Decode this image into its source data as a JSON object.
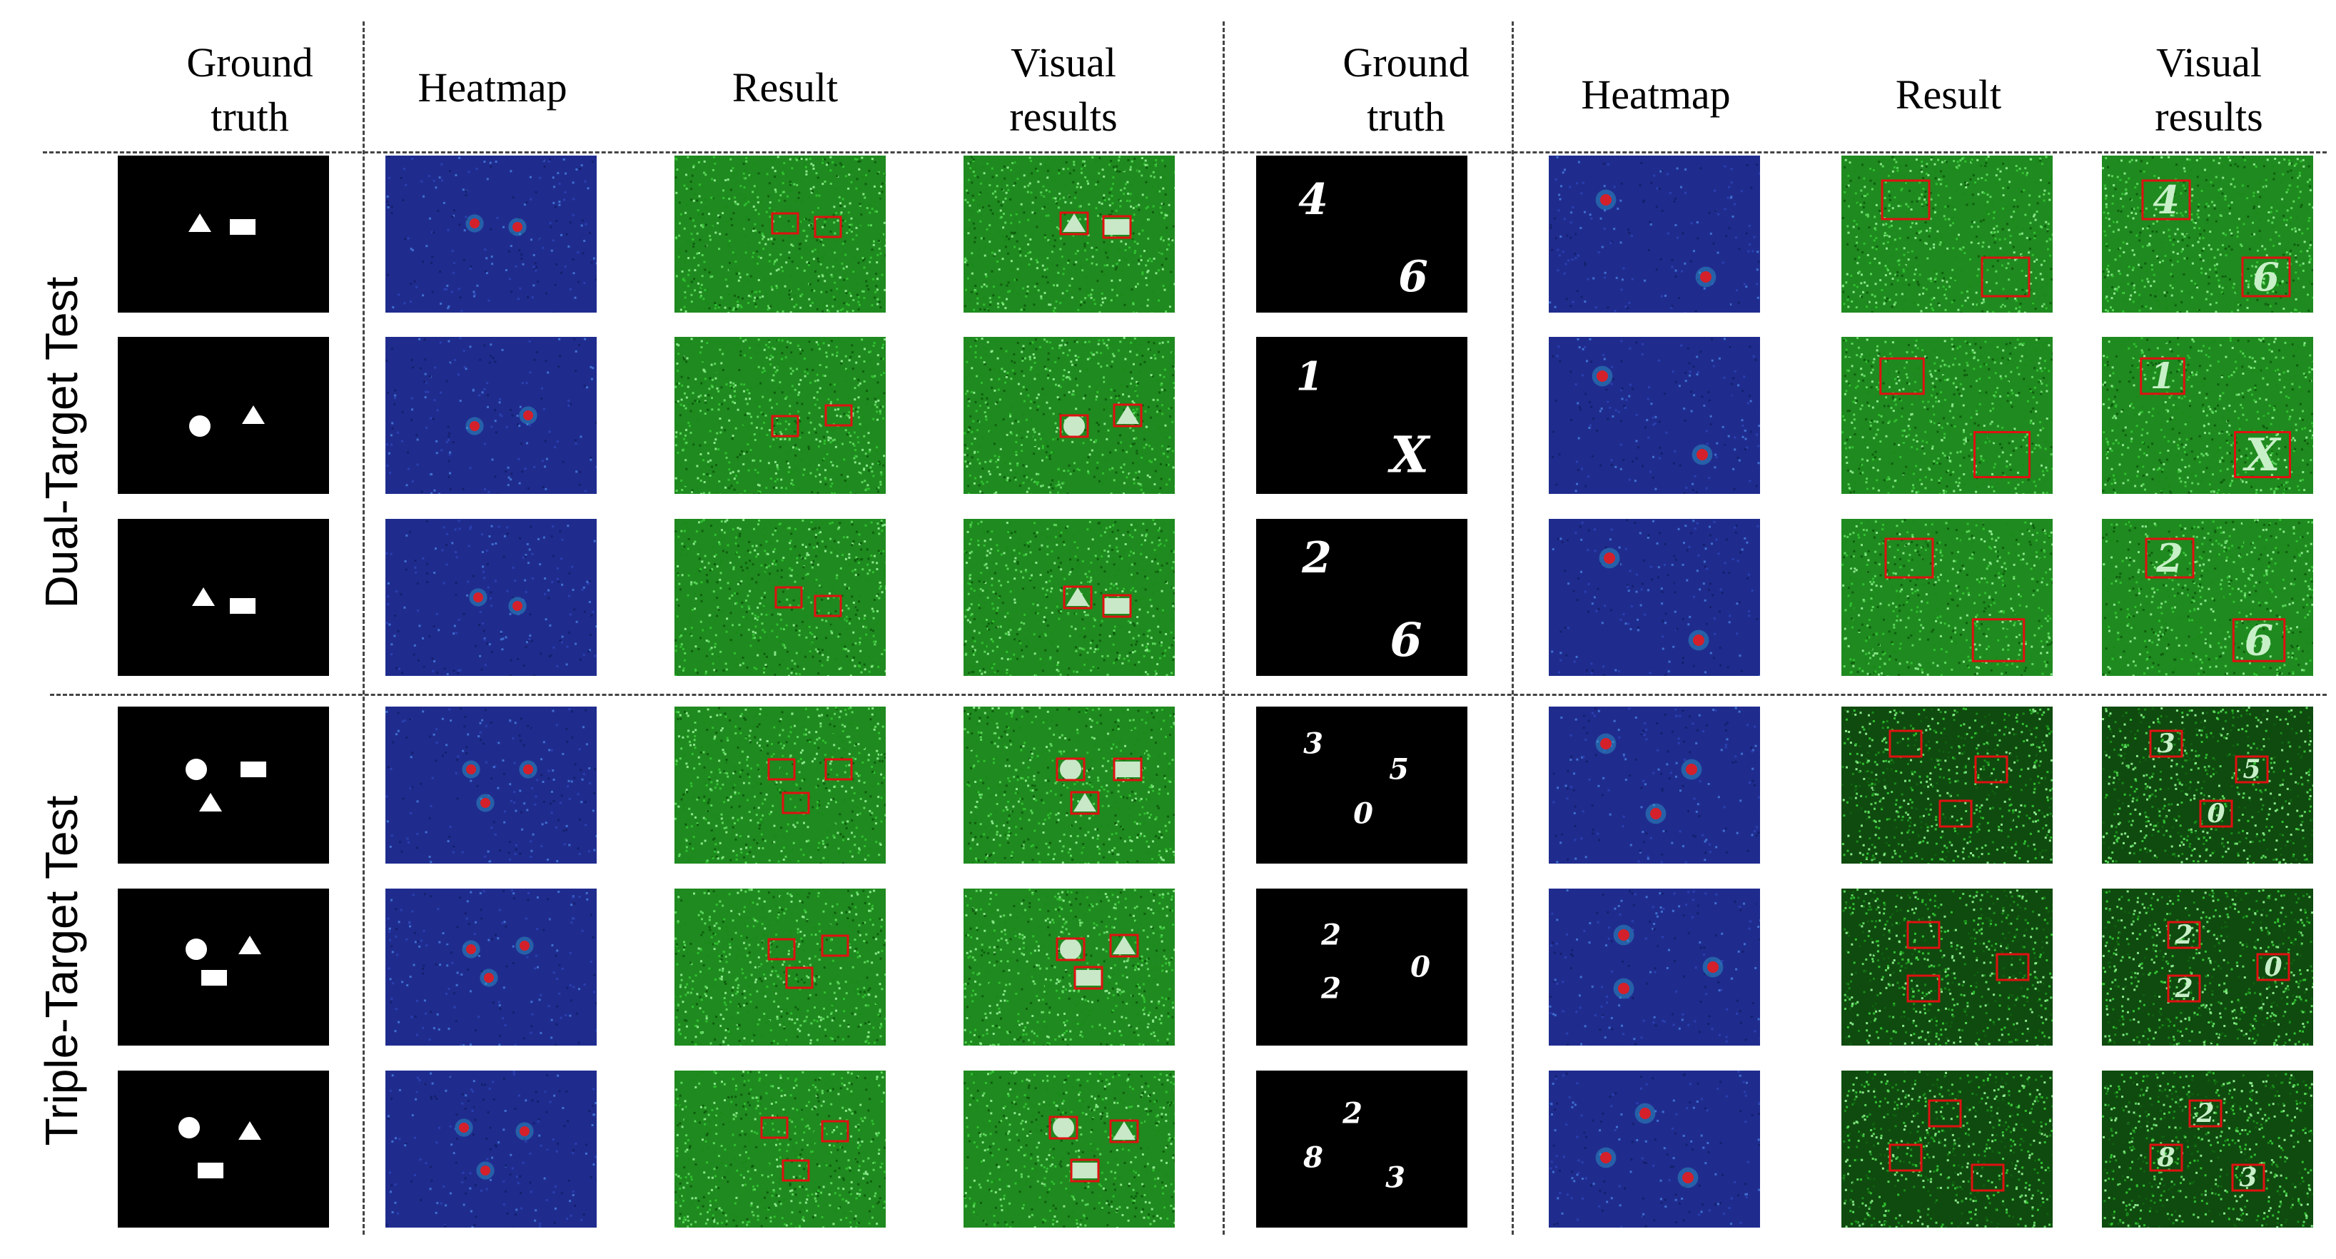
{
  "figure": {
    "headers": [
      {
        "line1": "Ground",
        "line2": "truth"
      },
      {
        "line1": "Heatmap",
        "line2": ""
      },
      {
        "line1": "Result",
        "line2": ""
      },
      {
        "line1": "Visual",
        "line2": "results"
      },
      {
        "line1": "Ground",
        "line2": "truth"
      },
      {
        "line1": "Heatmap",
        "line2": ""
      },
      {
        "line1": "Result",
        "line2": ""
      },
      {
        "line1": "Visual",
        "line2": "results"
      }
    ],
    "row_groups": [
      "Dual-Target Test",
      "Triple-Target Test"
    ],
    "digit_rows": [
      [
        "4",
        "6"
      ],
      [
        "1",
        "X"
      ],
      [
        "2",
        "6"
      ],
      [
        "3",
        "5",
        "0"
      ],
      [
        "2",
        "0",
        "2"
      ],
      [
        "2",
        "8",
        "3"
      ]
    ],
    "colors": {
      "ground_bg": "#000000",
      "heat_bg": "#1f2c8e",
      "result_bg": "#1f8a1f",
      "box": "#e01010"
    }
  }
}
